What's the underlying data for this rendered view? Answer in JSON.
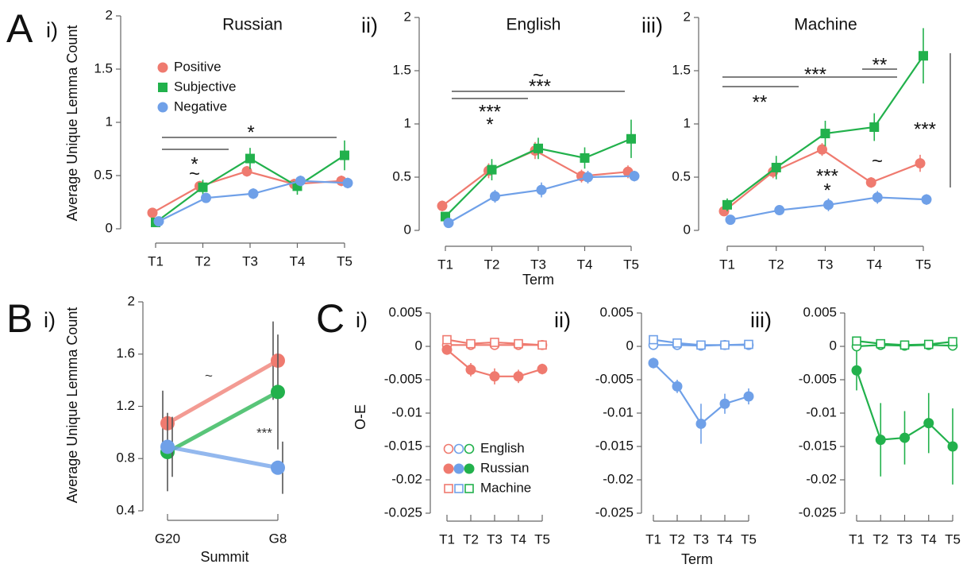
{
  "chart_data": [
    {
      "type": "line",
      "panel_letter": "A",
      "panel_number": "i)",
      "title": "Russian",
      "y_label": "Average Unique Lemma Count",
      "categories": [
        "T1",
        "T2",
        "T3",
        "T4",
        "T5"
      ],
      "ylim": [
        0,
        2
      ],
      "yticks": [
        0,
        0.5,
        1,
        1.5,
        2
      ],
      "legend": true,
      "series": [
        {
          "name": "Positive",
          "color": "#ef7a6f",
          "marker": "circle",
          "values": [
            0.15,
            0.4,
            0.54,
            0.42,
            0.45
          ],
          "errors": [
            0.03,
            0.05,
            0.05,
            0.05,
            0.05
          ]
        },
        {
          "name": "Subjective",
          "color": "#22b14c",
          "marker": "square",
          "values": [
            0.06,
            0.39,
            0.66,
            0.4,
            0.69
          ],
          "errors": [
            0.02,
            0.07,
            0.1,
            0.08,
            0.14
          ]
        },
        {
          "name": "Negative",
          "color": "#6fa0e8",
          "marker": "circle",
          "values": [
            0.07,
            0.29,
            0.33,
            0.45,
            0.43
          ],
          "errors": [
            0.02,
            0.04,
            0.05,
            0.05,
            0.05
          ]
        }
      ],
      "annotations": [
        "*",
        "*",
        "~"
      ]
    },
    {
      "type": "line",
      "panel_number": "ii)",
      "title": "English",
      "x_label": "Term",
      "categories": [
        "T1",
        "T2",
        "T3",
        "T4",
        "T5"
      ],
      "ylim": [
        0,
        2
      ],
      "yticks": [
        0,
        0.5,
        1,
        1.5,
        2
      ],
      "legend": false,
      "series": [
        {
          "name": "Positive",
          "color": "#ef7a6f",
          "marker": "circle",
          "values": [
            0.23,
            0.56,
            0.75,
            0.51,
            0.55
          ],
          "errors": [
            0.05,
            0.07,
            0.08,
            0.06,
            0.06
          ]
        },
        {
          "name": "Subjective",
          "color": "#22b14c",
          "marker": "square",
          "values": [
            0.13,
            0.57,
            0.77,
            0.68,
            0.86
          ],
          "errors": [
            0.04,
            0.1,
            0.1,
            0.1,
            0.18
          ]
        },
        {
          "name": "Negative",
          "color": "#6fa0e8",
          "marker": "circle",
          "values": [
            0.07,
            0.32,
            0.38,
            0.5,
            0.51
          ],
          "errors": [
            0.02,
            0.06,
            0.07,
            0.06,
            0.05
          ]
        }
      ],
      "annotations": [
        "~",
        "***",
        "***",
        "*"
      ]
    },
    {
      "type": "line",
      "panel_number": "iii)",
      "title": "Machine",
      "categories": [
        "T1",
        "T2",
        "T3",
        "T4",
        "T5"
      ],
      "ylim": [
        0,
        2
      ],
      "yticks": [
        0,
        0.5,
        1,
        1.5,
        2
      ],
      "legend": false,
      "series": [
        {
          "name": "Positive",
          "color": "#ef7a6f",
          "marker": "circle",
          "values": [
            0.18,
            0.55,
            0.76,
            0.45,
            0.63
          ],
          "errors": [
            0.04,
            0.06,
            0.06,
            0.05,
            0.08
          ]
        },
        {
          "name": "Subjective",
          "color": "#22b14c",
          "marker": "square",
          "values": [
            0.24,
            0.59,
            0.91,
            0.97,
            1.64
          ],
          "errors": [
            0.06,
            0.11,
            0.12,
            0.13,
            0.26
          ]
        },
        {
          "name": "Negative",
          "color": "#6fa0e8",
          "marker": "circle",
          "values": [
            0.1,
            0.19,
            0.24,
            0.31,
            0.29
          ],
          "errors": [
            0.02,
            0.03,
            0.06,
            0.06,
            0.05
          ]
        }
      ],
      "annotations": [
        "***",
        "**",
        "**",
        "***",
        "*",
        "~",
        "***"
      ]
    },
    {
      "type": "line",
      "panel_letter": "B",
      "panel_number": "i)",
      "y_label": "Average Unique Lemma Count",
      "x_label": "Summit",
      "categories": [
        "G20",
        "G8"
      ],
      "ylim": [
        0.4,
        2
      ],
      "yticks": [
        0.4,
        0.8,
        1.2,
        1.6,
        2
      ],
      "legend": false,
      "series": [
        {
          "color": "#ef7a6f",
          "marker": "big-circle",
          "values": [
            1.07,
            1.55
          ],
          "errors": [
            0.25,
            0.3
          ]
        },
        {
          "color": "#22b14c",
          "marker": "big-circle",
          "values": [
            0.85,
            1.31
          ],
          "errors": [
            0.3,
            0.44
          ]
        },
        {
          "color": "#6fa0e8",
          "marker": "big-circle",
          "values": [
            0.89,
            0.73
          ],
          "errors": [
            0.23,
            0.2
          ]
        }
      ],
      "annotations": [
        "~",
        "***"
      ]
    },
    {
      "type": "line",
      "panel_letter": "C",
      "panel_number": "i)",
      "y_label": "O-E",
      "categories": [
        "T1",
        "T2",
        "T3",
        "T4",
        "T5"
      ],
      "ylim": [
        -0.025,
        0.005
      ],
      "yticks": [
        -0.025,
        -0.02,
        -0.015,
        -0.01,
        -0.005,
        0,
        0.005
      ],
      "legend": true,
      "series": [
        {
          "name": "English",
          "color": "#ef7a6f",
          "marker": "open-circle",
          "values": [
            0.0002,
            0.0002,
            0.0002,
            0.0002,
            0.0002
          ],
          "errors": [
            0,
            0,
            0,
            0,
            0
          ]
        },
        {
          "name": "Russian",
          "color": "#ef7a6f",
          "marker": "circle",
          "values": [
            -0.0005,
            -0.0035,
            -0.0045,
            -0.0045,
            -0.0034
          ],
          "errors": [
            0.0006,
            0.001,
            0.0012,
            0.001,
            0.0008
          ]
        },
        {
          "name": "Machine",
          "color": "#ef7a6f",
          "marker": "open-square",
          "values": [
            0.001,
            0.0004,
            0.0006,
            0.0004,
            0.0002
          ],
          "errors": [
            0,
            0,
            0,
            0,
            0
          ]
        }
      ]
    },
    {
      "type": "line",
      "panel_number": "ii)",
      "x_label": "Term",
      "categories": [
        "T1",
        "T2",
        "T3",
        "T4",
        "T5"
      ],
      "ylim": [
        -0.025,
        0.005
      ],
      "yticks": [
        -0.025,
        -0.02,
        -0.015,
        -0.01,
        -0.005,
        0,
        0.005
      ],
      "legend": false,
      "series": [
        {
          "name": "English",
          "color": "#6fa0e8",
          "marker": "open-circle",
          "values": [
            0.0002,
            0.0002,
            0.0001,
            0.0002,
            0.0002
          ],
          "errors": [
            0,
            0,
            0,
            0,
            0
          ]
        },
        {
          "name": "Russian",
          "color": "#6fa0e8",
          "marker": "circle",
          "values": [
            -0.0025,
            -0.006,
            -0.0116,
            -0.0086,
            -0.0075
          ],
          "errors": [
            0.0008,
            0.001,
            0.003,
            0.0015,
            0.0012
          ]
        },
        {
          "name": "Machine",
          "color": "#6fa0e8",
          "marker": "open-square",
          "values": [
            0.001,
            0.0005,
            0.0002,
            0.0002,
            0.0003
          ],
          "errors": [
            0,
            0,
            0,
            0,
            0
          ]
        }
      ]
    },
    {
      "type": "line",
      "panel_number": "iii)",
      "categories": [
        "T1",
        "T2",
        "T3",
        "T4",
        "T5"
      ],
      "ylim": [
        -0.025,
        0.005
      ],
      "yticks": [
        -0.025,
        -0.02,
        -0.015,
        -0.01,
        -0.005,
        0,
        0.005
      ],
      "legend": false,
      "series": [
        {
          "name": "English",
          "color": "#22b14c",
          "marker": "open-circle",
          "values": [
            0,
            0.0002,
            0.0001,
            0.0002,
            0.0001
          ],
          "errors": [
            0,
            0,
            0,
            0,
            0
          ]
        },
        {
          "name": "Russian",
          "color": "#22b14c",
          "marker": "circle",
          "values": [
            -0.0036,
            -0.014,
            -0.0137,
            -0.0115,
            -0.015
          ],
          "errors": [
            0.003,
            0.0055,
            0.004,
            0.0045,
            0.0057
          ]
        },
        {
          "name": "Machine",
          "color": "#22b14c",
          "marker": "open-square",
          "values": [
            0.0008,
            0.0004,
            0.0002,
            0.0003,
            0.0007
          ],
          "errors": [
            0,
            0,
            0,
            0,
            0
          ]
        }
      ]
    }
  ]
}
